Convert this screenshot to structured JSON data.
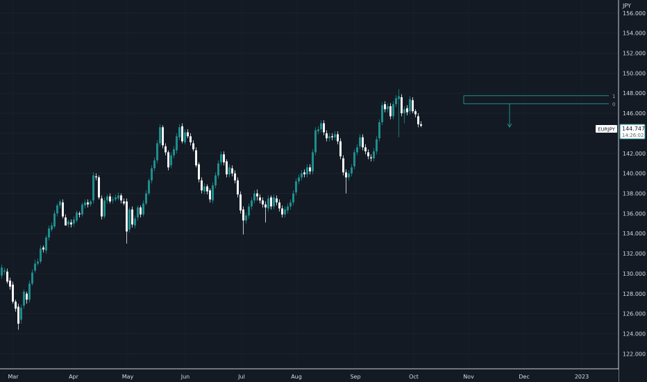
{
  "currency_label": "JPY",
  "symbol_tag": "EURJPY",
  "price_tag": {
    "price": "144.747",
    "countdown": "14:26:02"
  },
  "fib_labels": [
    "1",
    "0"
  ],
  "fib_levels": [
    147.75,
    146.95
  ],
  "colors": {
    "background": "#131a23",
    "up": "#1e8e8e",
    "down": "#f5f7fa",
    "fib_line": "#1f8f8b",
    "arrow": "#1f8f8b",
    "axis_line": "#c8d0d8",
    "axis_text": "#d7dde4"
  },
  "chart_data": {
    "type": "candlestick",
    "title": "",
    "ylabel": "JPY",
    "ylim": [
      120.5,
      157.3
    ],
    "y_ticks": [
      "122.000",
      "124.000",
      "126.000",
      "128.000",
      "130.000",
      "132.000",
      "134.000",
      "136.000",
      "138.000",
      "140.000",
      "142.000",
      "144.000",
      "146.000",
      "148.000",
      "150.000",
      "152.000",
      "154.000",
      "156.000"
    ],
    "x_ticks": [
      "Mar",
      "Apr",
      "May",
      "Jun",
      "Jul",
      "Aug",
      "Sep",
      "Oct",
      "Nov",
      "Dec",
      "2023"
    ],
    "grid": true,
    "last_price": 144.747,
    "points": [
      [
        129.8,
        130.6
      ],
      [
        130.2,
        130.3
      ],
      [
        130.2,
        129.2
      ],
      [
        129.3,
        128.7
      ],
      [
        128.9,
        127.2
      ],
      [
        127.2,
        126.5
      ],
      [
        126.7,
        125.0
      ],
      [
        125.4,
        126.6
      ],
      [
        126.8,
        128.2
      ],
      [
        128.0,
        127.4
      ],
      [
        127.4,
        129.0
      ],
      [
        129.0,
        130.1
      ],
      [
        130.3,
        131.0
      ],
      [
        131.0,
        131.2
      ],
      [
        131.2,
        132.5
      ],
      [
        132.6,
        132.4
      ],
      [
        132.3,
        133.6
      ],
      [
        133.6,
        134.5
      ],
      [
        134.4,
        134.8
      ],
      [
        134.7,
        136.0
      ],
      [
        136.0,
        136.8
      ],
      [
        136.8,
        137.2
      ],
      [
        137.1,
        135.7
      ],
      [
        135.6,
        134.8
      ],
      [
        134.9,
        135.2
      ],
      [
        135.1,
        134.9
      ],
      [
        135.0,
        135.4
      ],
      [
        135.3,
        136.1
      ],
      [
        136.0,
        135.9
      ],
      [
        135.9,
        136.9
      ],
      [
        136.8,
        137.1
      ],
      [
        137.1,
        136.9
      ],
      [
        136.9,
        137.2
      ],
      [
        137.3,
        139.8
      ],
      [
        139.7,
        139.6
      ],
      [
        139.6,
        137.6
      ],
      [
        137.5,
        135.7
      ],
      [
        135.7,
        137.3
      ],
      [
        137.3,
        137.7
      ],
      [
        137.7,
        137.2
      ],
      [
        137.3,
        137.4
      ],
      [
        137.4,
        137.6
      ],
      [
        137.5,
        137.8
      ],
      [
        137.8,
        137.3
      ],
      [
        137.2,
        137.0
      ],
      [
        137.2,
        134.2
      ],
      [
        134.4,
        136.4
      ],
      [
        136.4,
        134.9
      ],
      [
        134.8,
        135.5
      ],
      [
        135.6,
        136.6
      ],
      [
        136.6,
        135.9
      ],
      [
        135.9,
        137.0
      ],
      [
        137.0,
        138.0
      ],
      [
        138.0,
        139.3
      ],
      [
        139.3,
        140.5
      ],
      [
        140.5,
        141.3
      ],
      [
        141.3,
        143.0
      ],
      [
        143.0,
        144.6
      ],
      [
        144.6,
        142.8
      ],
      [
        142.7,
        142.1
      ],
      [
        142.1,
        140.6
      ],
      [
        140.8,
        141.8
      ],
      [
        141.8,
        142.4
      ],
      [
        142.3,
        143.7
      ],
      [
        143.6,
        144.6
      ],
      [
        144.7,
        143.2
      ],
      [
        143.1,
        144.1
      ],
      [
        144.1,
        143.7
      ],
      [
        143.7,
        143.1
      ],
      [
        143.0,
        142.4
      ],
      [
        142.3,
        140.8
      ],
      [
        140.9,
        139.4
      ],
      [
        139.3,
        138.3
      ],
      [
        138.2,
        138.7
      ],
      [
        138.7,
        138.2
      ],
      [
        138.3,
        137.4
      ],
      [
        137.3,
        138.8
      ],
      [
        138.8,
        139.8
      ],
      [
        139.8,
        141.0
      ],
      [
        141.1,
        141.9
      ],
      [
        141.9,
        141.1
      ],
      [
        141.2,
        139.9
      ],
      [
        139.9,
        140.6
      ],
      [
        140.5,
        140.0
      ],
      [
        140.0,
        139.3
      ],
      [
        139.3,
        137.9
      ],
      [
        137.9,
        136.3
      ],
      [
        136.4,
        135.3
      ],
      [
        135.3,
        135.8
      ],
      [
        135.8,
        136.7
      ],
      [
        136.7,
        137.3
      ],
      [
        137.3,
        138.0
      ],
      [
        138.0,
        137.7
      ],
      [
        137.6,
        137.3
      ],
      [
        137.3,
        136.9
      ],
      [
        136.9,
        136.6
      ],
      [
        136.5,
        137.5
      ],
      [
        137.6,
        136.7
      ],
      [
        136.7,
        137.6
      ],
      [
        137.5,
        137.1
      ],
      [
        137.1,
        136.5
      ],
      [
        136.5,
        135.9
      ],
      [
        135.9,
        136.4
      ],
      [
        136.3,
        136.7
      ],
      [
        136.7,
        137.1
      ],
      [
        137.1,
        138.0
      ],
      [
        138.1,
        139.2
      ],
      [
        139.2,
        139.6
      ],
      [
        139.6,
        140.0
      ],
      [
        140.1,
        139.9
      ],
      [
        139.9,
        140.6
      ],
      [
        140.6,
        140.2
      ],
      [
        140.2,
        142.1
      ],
      [
        142.1,
        144.3
      ],
      [
        144.2,
        144.4
      ],
      [
        144.4,
        145.0
      ],
      [
        145.0,
        144.1
      ],
      [
        144.0,
        143.5
      ],
      [
        143.5,
        143.7
      ],
      [
        143.7,
        143.6
      ],
      [
        143.6,
        143.9
      ],
      [
        143.9,
        143.2
      ],
      [
        143.2,
        141.7
      ],
      [
        141.5,
        140.1
      ],
      [
        140.1,
        139.6
      ],
      [
        139.6,
        140.0
      ],
      [
        140.0,
        140.6
      ],
      [
        140.7,
        142.1
      ],
      [
        142.1,
        142.6
      ],
      [
        142.7,
        143.6
      ],
      [
        143.6,
        142.6
      ],
      [
        142.6,
        142.2
      ],
      [
        142.1,
        141.7
      ],
      [
        141.6,
        141.5
      ],
      [
        141.5,
        142.2
      ],
      [
        142.2,
        143.4
      ],
      [
        143.5,
        145.1
      ],
      [
        145.1,
        146.8
      ],
      [
        146.9,
        146.4
      ],
      [
        146.4,
        146.7
      ],
      [
        146.7,
        145.7
      ],
      [
        145.7,
        146.9
      ],
      [
        146.9,
        147.5
      ],
      [
        147.4,
        147.7
      ],
      [
        147.6,
        146.0
      ],
      [
        146.0,
        146.4
      ],
      [
        146.5,
        146.1
      ],
      [
        146.2,
        147.4
      ],
      [
        147.3,
        146.2
      ],
      [
        146.2,
        145.9
      ],
      [
        145.7,
        144.9
      ],
      [
        144.9,
        144.75
      ]
    ],
    "wicks": [
      [
        129.5,
        130.9
      ],
      [
        129.9,
        130.6
      ],
      [
        129.0,
        130.5
      ],
      [
        128.4,
        129.6
      ],
      [
        127.0,
        129.2
      ],
      [
        126.2,
        127.4
      ],
      [
        124.4,
        127.0
      ],
      [
        125.0,
        126.9
      ],
      [
        126.5,
        128.4
      ],
      [
        127.0,
        128.2
      ],
      [
        127.1,
        129.3
      ],
      [
        128.8,
        130.4
      ],
      [
        130.1,
        131.4
      ],
      [
        130.8,
        131.5
      ],
      [
        131.0,
        132.8
      ],
      [
        132.1,
        132.8
      ],
      [
        132.0,
        133.8
      ],
      [
        133.3,
        134.8
      ],
      [
        134.2,
        135.1
      ],
      [
        134.5,
        136.3
      ],
      [
        135.7,
        137.0
      ],
      [
        136.5,
        137.4
      ],
      [
        135.5,
        137.4
      ],
      [
        135.3,
        135.9
      ],
      [
        134.6,
        135.4
      ],
      [
        134.6,
        135.4
      ],
      [
        134.7,
        135.7
      ],
      [
        135.1,
        136.3
      ],
      [
        135.6,
        136.2
      ],
      [
        135.7,
        137.1
      ],
      [
        136.5,
        137.4
      ],
      [
        136.6,
        137.4
      ],
      [
        136.7,
        137.4
      ],
      [
        137.0,
        140.1
      ],
      [
        139.3,
        140.0
      ],
      [
        137.4,
        139.8
      ],
      [
        135.4,
        137.8
      ],
      [
        135.5,
        137.6
      ],
      [
        137.0,
        137.9
      ],
      [
        137.0,
        138.0
      ],
      [
        137.0,
        137.7
      ],
      [
        137.2,
        137.9
      ],
      [
        137.3,
        138.1
      ],
      [
        137.0,
        138.0
      ],
      [
        136.8,
        137.5
      ],
      [
        133.0,
        137.5
      ],
      [
        134.1,
        136.6
      ],
      [
        134.6,
        136.7
      ],
      [
        134.5,
        135.8
      ],
      [
        135.3,
        136.8
      ],
      [
        135.6,
        136.8
      ],
      [
        135.7,
        137.3
      ],
      [
        136.8,
        138.3
      ],
      [
        137.8,
        139.5
      ],
      [
        139.0,
        140.8
      ],
      [
        140.2,
        141.6
      ],
      [
        141.0,
        143.3
      ],
      [
        142.7,
        144.9
      ],
      [
        142.5,
        144.8
      ],
      [
        141.8,
        143.0
      ],
      [
        140.3,
        142.3
      ],
      [
        140.5,
        142.1
      ],
      [
        141.5,
        142.7
      ],
      [
        142.0,
        144.0
      ],
      [
        143.3,
        144.9
      ],
      [
        143.0,
        145.0
      ],
      [
        142.9,
        144.4
      ],
      [
        143.5,
        144.4
      ],
      [
        142.8,
        144.0
      ],
      [
        142.2,
        143.3
      ],
      [
        140.6,
        142.6
      ],
      [
        139.1,
        141.1
      ],
      [
        138.0,
        139.6
      ],
      [
        137.9,
        139.0
      ],
      [
        137.9,
        138.9
      ],
      [
        137.1,
        138.5
      ],
      [
        137.0,
        139.1
      ],
      [
        138.5,
        140.1
      ],
      [
        139.5,
        141.3
      ],
      [
        140.8,
        142.2
      ],
      [
        140.8,
        142.2
      ],
      [
        139.6,
        141.4
      ],
      [
        139.6,
        140.9
      ],
      [
        139.7,
        140.8
      ],
      [
        139.0,
        140.3
      ],
      [
        137.6,
        139.6
      ],
      [
        136.0,
        138.2
      ],
      [
        133.9,
        136.7
      ],
      [
        135.0,
        136.1
      ],
      [
        135.5,
        137.0
      ],
      [
        136.4,
        137.6
      ],
      [
        137.0,
        138.3
      ],
      [
        137.3,
        138.4
      ],
      [
        137.0,
        137.9
      ],
      [
        136.6,
        137.6
      ],
      [
        135.1,
        137.2
      ],
      [
        136.2,
        137.8
      ],
      [
        136.4,
        137.8
      ],
      [
        136.4,
        137.9
      ],
      [
        136.8,
        137.8
      ],
      [
        136.2,
        137.4
      ],
      [
        135.6,
        136.8
      ],
      [
        135.6,
        136.7
      ],
      [
        136.0,
        137.0
      ],
      [
        136.4,
        137.4
      ],
      [
        136.8,
        138.3
      ],
      [
        137.8,
        139.5
      ],
      [
        138.9,
        139.9
      ],
      [
        139.3,
        140.3
      ],
      [
        139.6,
        140.4
      ],
      [
        139.6,
        140.9
      ],
      [
        139.9,
        140.9
      ],
      [
        139.9,
        142.4
      ],
      [
        141.8,
        144.6
      ],
      [
        143.9,
        144.7
      ],
      [
        144.1,
        145.3
      ],
      [
        143.8,
        145.3
      ],
      [
        143.2,
        144.3
      ],
      [
        143.2,
        144.0
      ],
      [
        143.3,
        144.0
      ],
      [
        143.3,
        144.2
      ],
      [
        142.9,
        144.2
      ],
      [
        141.4,
        143.5
      ],
      [
        139.8,
        141.8
      ],
      [
        138.0,
        140.4
      ],
      [
        139.3,
        140.3
      ],
      [
        139.7,
        140.9
      ],
      [
        140.4,
        142.4
      ],
      [
        141.8,
        142.9
      ],
      [
        142.4,
        143.9
      ],
      [
        142.3,
        143.9
      ],
      [
        141.9,
        142.9
      ],
      [
        141.4,
        142.4
      ],
      [
        141.2,
        141.9
      ],
      [
        141.2,
        142.5
      ],
      [
        141.9,
        143.7
      ],
      [
        143.2,
        145.4
      ],
      [
        144.8,
        147.1
      ],
      [
        146.1,
        147.2
      ],
      [
        146.1,
        147.0
      ],
      [
        145.4,
        147.0
      ],
      [
        145.4,
        147.2
      ],
      [
        146.6,
        147.8
      ],
      [
        143.6,
        148.4
      ],
      [
        145.7,
        147.9
      ],
      [
        145.0,
        146.7
      ],
      [
        145.8,
        146.8
      ],
      [
        145.9,
        147.7
      ],
      [
        146.0,
        147.6
      ],
      [
        145.6,
        146.4
      ],
      [
        144.6,
        146.0
      ],
      [
        144.6,
        145.2
      ]
    ]
  }
}
